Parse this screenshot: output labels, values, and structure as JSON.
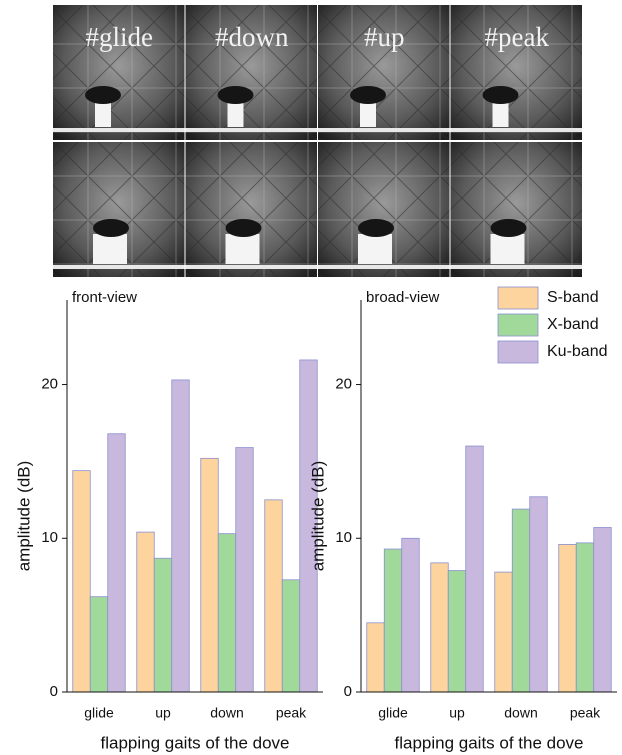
{
  "photo_labels": [
    "#glide",
    "#down",
    "#up",
    "#peak"
  ],
  "chart_data": [
    {
      "type": "bar",
      "title": "front-view",
      "xlabel": "flapping gaits of the dove",
      "ylabel": "amplitude (dB)",
      "categories": [
        "glide",
        "up",
        "down",
        "peak"
      ],
      "series": [
        {
          "name": "S-band",
          "color": "#fdd49e",
          "values": [
            14.4,
            10.4,
            15.2,
            12.5
          ]
        },
        {
          "name": "X-band",
          "color": "#a1d99b",
          "values": [
            6.2,
            8.7,
            10.3,
            7.3
          ]
        },
        {
          "name": "Ku-band",
          "color": "#c9b8dd",
          "values": [
            16.8,
            20.3,
            15.9,
            21.6
          ]
        }
      ],
      "ylim": [
        0,
        25.5
      ],
      "yticks": [
        0,
        10,
        20
      ]
    },
    {
      "type": "bar",
      "title": "broad-view",
      "xlabel": "flapping gaits of the dove",
      "ylabel": "amplitude (dB)",
      "categories": [
        "glide",
        "up",
        "down",
        "peak"
      ],
      "series": [
        {
          "name": "S-band",
          "color": "#fdd49e",
          "values": [
            4.5,
            8.4,
            7.8,
            9.6
          ]
        },
        {
          "name": "X-band",
          "color": "#a1d99b",
          "values": [
            9.3,
            7.9,
            11.9,
            9.7
          ]
        },
        {
          "name": "Ku-band",
          "color": "#c9b8dd",
          "values": [
            10.0,
            16.0,
            12.7,
            10.7
          ]
        }
      ],
      "ylim": [
        0,
        25.5
      ],
      "yticks": [
        0,
        10,
        20
      ],
      "legend": "upper right"
    }
  ]
}
